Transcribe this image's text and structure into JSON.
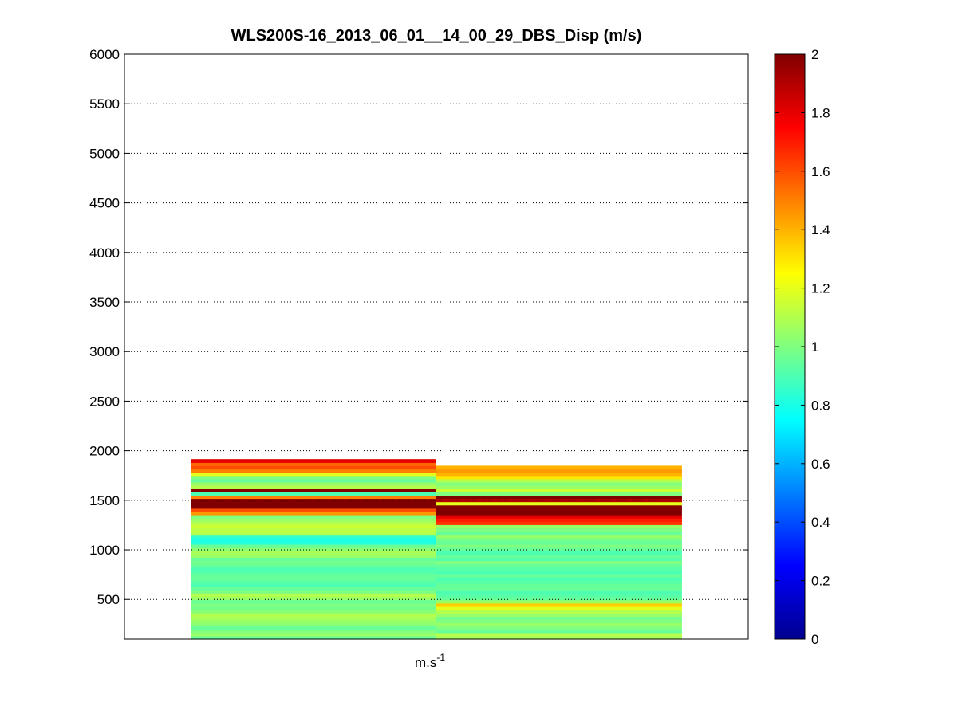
{
  "chart_data": {
    "type": "heatmap",
    "title": "WLS200S-16_2013_06_01__14_00_29_DBS_Disp (m/s)",
    "xlabel": "m.s",
    "xlabel_superscript": "-1",
    "ylabel": "",
    "ylim": [
      100,
      6000
    ],
    "yticks": [
      500,
      1000,
      1500,
      2000,
      2500,
      3000,
      3500,
      4000,
      4500,
      5000,
      5500,
      6000
    ],
    "grid": "horizontal dotted",
    "colormap": "jet",
    "clim": [
      0,
      2
    ],
    "colorbar_ticks": [
      0,
      0.2,
      0.4,
      0.6,
      0.8,
      1,
      1.2,
      1.4,
      1.6,
      1.8,
      2
    ],
    "columns": [
      {
        "x_start": 1,
        "x_end": 2,
        "values": [
          0.95,
          1.05,
          1.0,
          0.95,
          1.02,
          1.05,
          1.08,
          1.1,
          1.02,
          0.98,
          1.0,
          0.95,
          1.05,
          1.1,
          1.0,
          0.95,
          0.9,
          0.92,
          0.95,
          0.95,
          0.92,
          0.9,
          0.95,
          0.98,
          0.95,
          1.05,
          1.08,
          1.02,
          0.95,
          0.82,
          0.8,
          0.85,
          1.1,
          1.12,
          1.15,
          1.1,
          1.05,
          1.0,
          1.45,
          1.6,
          2.0,
          2.0,
          2.0,
          1.5,
          0.9,
          2.0,
          1.1,
          1.05,
          0.95,
          1.0,
          1.2,
          1.5,
          1.6,
          1.55,
          1.8
        ]
      },
      {
        "x_start": 2,
        "x_end": 3,
        "values": [
          1.08,
          1.1,
          0.95,
          1.0,
          1.05,
          1.0,
          0.98,
          1.05,
          1.1,
          1.2,
          1.35,
          1.05,
          0.95,
          0.92,
          0.9,
          0.95,
          0.95,
          0.92,
          0.9,
          0.95,
          0.9,
          0.92,
          0.95,
          1.0,
          0.92,
          0.95,
          0.9,
          0.95,
          1.0,
          0.95,
          0.98,
          1.05,
          0.95,
          1.0,
          1.05,
          1.65,
          1.7,
          1.8,
          2.0,
          2.0,
          2.0,
          1.2,
          1.9,
          2.0,
          1.0,
          1.15,
          1.05,
          1.0,
          1.1,
          1.3,
          1.4,
          1.45,
          1.4
        ]
      }
    ]
  }
}
